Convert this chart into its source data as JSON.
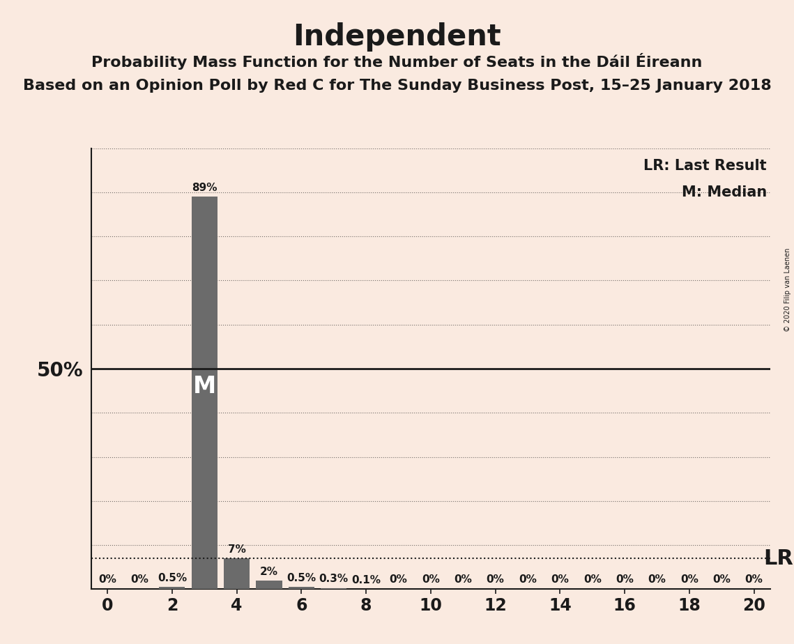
{
  "title": "Independent",
  "subtitle1": "Probability Mass Function for the Number of Seats in the Dáil Éireann",
  "subtitle2": "Based on an Opinion Poll by Red C for The Sunday Business Post, 15–25 January 2018",
  "copyright": "© 2020 Filip van Laenen",
  "seats": [
    0,
    1,
    2,
    3,
    4,
    5,
    6,
    7,
    8,
    9,
    10,
    11,
    12,
    13,
    14,
    15,
    16,
    17,
    18,
    19,
    20
  ],
  "probabilities": [
    0.0,
    0.0,
    0.5,
    89.0,
    7.0,
    2.0,
    0.5,
    0.3,
    0.1,
    0.0,
    0.0,
    0.0,
    0.0,
    0.0,
    0.0,
    0.0,
    0.0,
    0.0,
    0.0,
    0.0,
    0.0
  ],
  "bar_color": "#6b6b6b",
  "background_color": "#faeae0",
  "fifty_pct_line_color": "#1a1a1a",
  "lr_line_color": "#1a1a1a",
  "lr_y": 7.0,
  "median_seat": 3,
  "ylim": [
    0,
    100
  ],
  "xlim": [
    -0.5,
    20.5
  ],
  "grid_color": "#1a1a1a",
  "bar_label_fontsize": 11,
  "title_fontsize": 30,
  "subtitle1_fontsize": 16,
  "subtitle2_fontsize": 16,
  "fifty_pct_fontsize": 20,
  "legend_fontsize": 15,
  "lr_label_fontsize": 22,
  "m_label_fontsize": 24,
  "xtick_labels": [
    "0",
    "2",
    "4",
    "6",
    "8",
    "10",
    "12",
    "14",
    "16",
    "18",
    "20"
  ],
  "xtick_positions": [
    0,
    2,
    4,
    6,
    8,
    10,
    12,
    14,
    16,
    18,
    20
  ]
}
